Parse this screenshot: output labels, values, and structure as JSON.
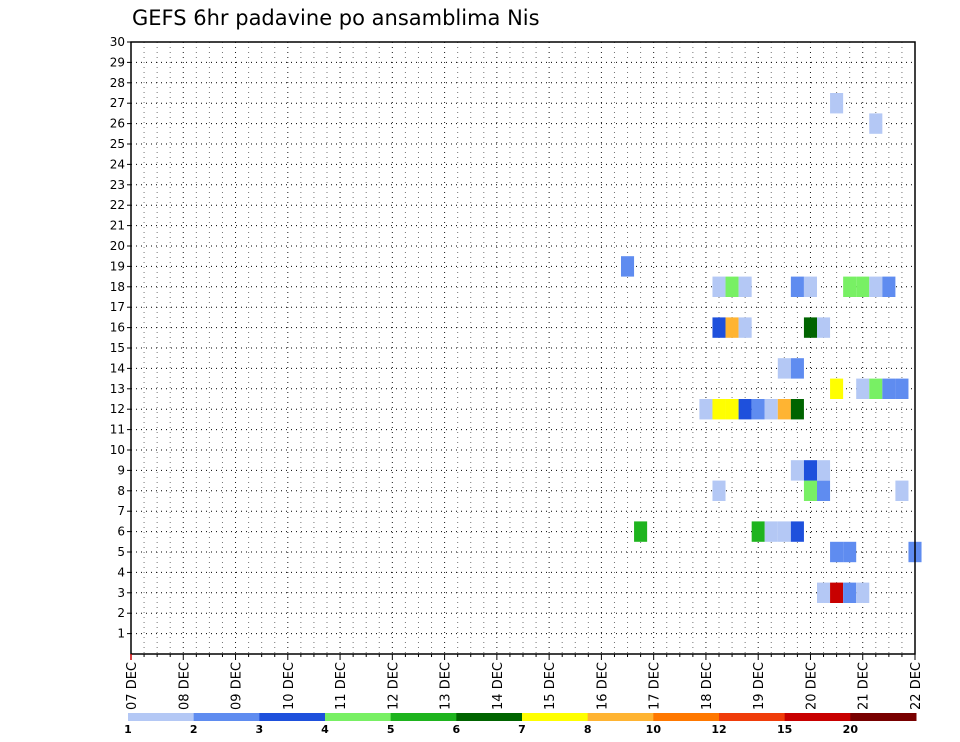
{
  "chart_data": {
    "type": "heatmap",
    "title": "GEFS 6hr padavine po ansamblima Nis",
    "xlabel": "",
    "ylabel": "",
    "x_ticks": [
      "07 DEC",
      "08 DEC",
      "09 DEC",
      "10 DEC",
      "11 DEC",
      "12 DEC",
      "13 DEC",
      "14 DEC",
      "15 DEC",
      "16 DEC",
      "17 DEC",
      "18 DEC",
      "19 DEC",
      "20 DEC",
      "21 DEC",
      "22 DEC"
    ],
    "xlim": [
      "07 DEC 00h",
      "22 DEC 00h"
    ],
    "y_ticks": [
      1,
      2,
      3,
      4,
      5,
      6,
      7,
      8,
      9,
      10,
      11,
      12,
      13,
      14,
      15,
      16,
      17,
      18,
      19,
      20,
      21,
      22,
      23,
      24,
      25,
      26,
      27,
      28,
      29,
      30
    ],
    "ylim": [
      0,
      30
    ],
    "grid": true,
    "legend": {
      "placement": "bottom",
      "labels": [
        "1",
        "2",
        "3",
        "4",
        "5",
        "6",
        "7",
        "8",
        "10",
        "12",
        "15",
        "20"
      ],
      "colors": [
        "#b4c8f5",
        "#5f8cf0",
        "#1e50dc",
        "#78f064",
        "#1eb41e",
        "#006400",
        "#ffff00",
        "#ffb432",
        "#ff7800",
        "#f03c0a",
        "#c80000",
        "#780000"
      ]
    },
    "series": [
      {
        "member": 3,
        "points": [
          [
            "20 DEC 06h",
            1
          ],
          [
            "20 DEC 12h",
            15
          ],
          [
            "20 DEC 18h",
            2
          ],
          [
            "21 DEC 00h",
            1
          ]
        ]
      },
      {
        "member": 5,
        "points": [
          [
            "20 DEC 12h",
            2
          ],
          [
            "20 DEC 18h",
            2
          ],
          [
            "22 DEC 00h",
            2
          ]
        ]
      },
      {
        "member": 6,
        "points": [
          [
            "16 DEC 18h",
            5
          ],
          [
            "19 DEC 00h",
            5
          ],
          [
            "19 DEC 06h",
            1
          ],
          [
            "19 DEC 12h",
            1
          ],
          [
            "19 DEC 18h",
            3
          ]
        ]
      },
      {
        "member": 8,
        "points": [
          [
            "18 DEC 06h",
            1
          ],
          [
            "20 DEC 00h",
            4
          ],
          [
            "20 DEC 06h",
            2
          ],
          [
            "21 DEC 18h",
            1
          ]
        ]
      },
      {
        "member": 9,
        "points": [
          [
            "19 DEC 18h",
            1
          ],
          [
            "20 DEC 00h",
            3
          ],
          [
            "20 DEC 06h",
            1
          ]
        ]
      },
      {
        "member": 12,
        "points": [
          [
            "18 DEC 00h",
            1
          ],
          [
            "18 DEC 06h",
            7
          ],
          [
            "18 DEC 12h",
            7
          ],
          [
            "18 DEC 18h",
            3
          ],
          [
            "19 DEC 00h",
            2
          ],
          [
            "19 DEC 06h",
            1
          ],
          [
            "19 DEC 12h",
            8
          ],
          [
            "19 DEC 18h",
            6
          ]
        ]
      },
      {
        "member": 13,
        "points": [
          [
            "20 DEC 12h",
            7
          ],
          [
            "21 DEC 00h",
            1
          ],
          [
            "21 DEC 06h",
            4
          ],
          [
            "21 DEC 12h",
            2
          ],
          [
            "21 DEC 18h",
            2
          ]
        ]
      },
      {
        "member": 14,
        "points": [
          [
            "19 DEC 12h",
            1
          ],
          [
            "19 DEC 18h",
            2
          ]
        ]
      },
      {
        "member": 16,
        "points": [
          [
            "18 DEC 06h",
            3
          ],
          [
            "18 DEC 12h",
            8
          ],
          [
            "18 DEC 18h",
            1
          ],
          [
            "20 DEC 00h",
            6
          ],
          [
            "20 DEC 06h",
            1
          ]
        ]
      },
      {
        "member": 18,
        "points": [
          [
            "18 DEC 06h",
            1
          ],
          [
            "18 DEC 12h",
            4
          ],
          [
            "18 DEC 18h",
            1
          ],
          [
            "19 DEC 18h",
            2
          ],
          [
            "20 DEC 00h",
            1
          ],
          [
            "20 DEC 18h",
            4
          ],
          [
            "21 DEC 00h",
            4
          ],
          [
            "21 DEC 06h",
            1
          ],
          [
            "21 DEC 12h",
            2
          ]
        ]
      },
      {
        "member": 19,
        "points": [
          [
            "16 DEC 12h",
            2
          ]
        ]
      },
      {
        "member": 26,
        "points": [
          [
            "21 DEC 06h",
            1
          ]
        ]
      },
      {
        "member": 27,
        "points": [
          [
            "20 DEC 12h",
            1
          ]
        ]
      }
    ]
  }
}
